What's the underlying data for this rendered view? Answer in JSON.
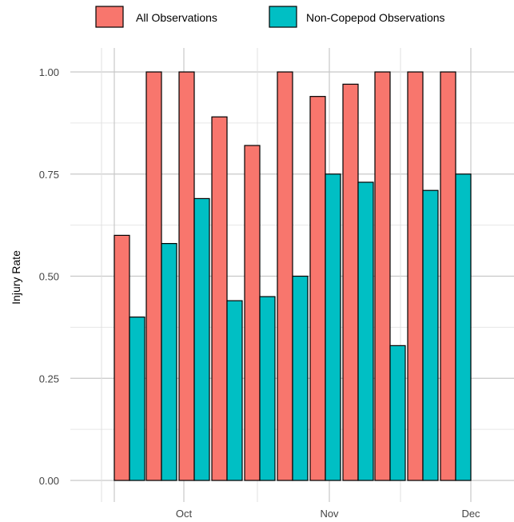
{
  "chart_data": {
    "type": "bar",
    "ylabel": "Injury Rate",
    "xlabel": "",
    "ylim": [
      0,
      1.06
    ],
    "yticks": [
      "0.00",
      "0.25",
      "0.50",
      "0.75",
      "1.00"
    ],
    "ytick_values": [
      0,
      0.25,
      0.5,
      0.75,
      1.0
    ],
    "x_tick_labels": [
      "Oct",
      "Nov",
      "Dec"
    ],
    "grid": true,
    "legend_position": "top",
    "series": [
      {
        "name": "All Observations",
        "color": "#F8766D",
        "values": [
          0.6,
          1.0,
          1.0,
          0.89,
          0.82,
          1.0,
          0.94,
          0.97,
          1.0,
          1.0,
          1.0
        ]
      },
      {
        "name": "Non-Copepod Observations",
        "color": "#00BFC4",
        "values": [
          0.4,
          0.58,
          0.69,
          0.44,
          0.45,
          0.5,
          0.75,
          0.73,
          0.33,
          0.71,
          0.75
        ]
      }
    ]
  }
}
